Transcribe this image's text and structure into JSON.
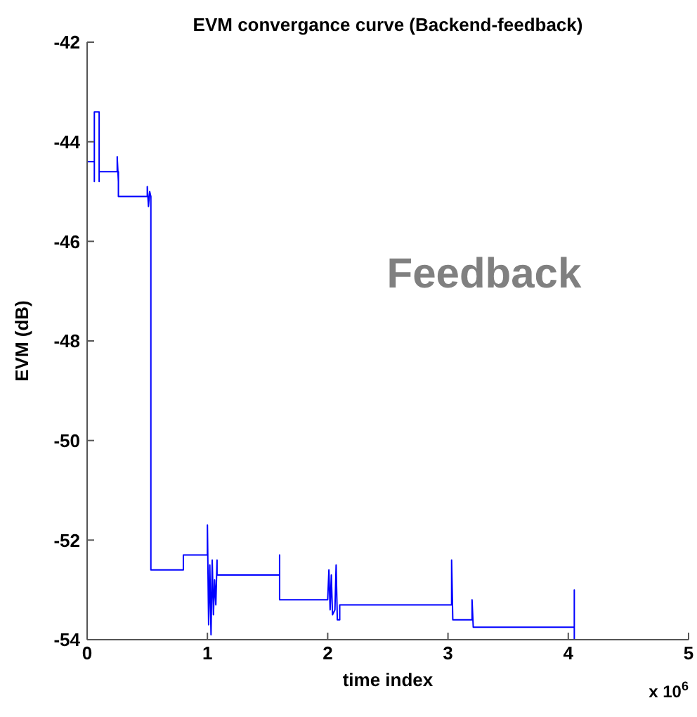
{
  "chart_data": {
    "type": "line",
    "title": "EVM convergance curve (Backend-feedback)",
    "xlabel": "time index",
    "ylabel": "EVM (dB)",
    "annotations": [
      "Feedback",
      "x 10$^{6}$"
    ],
    "xlim": [
      0,
      5
    ],
    "xticks": [
      0,
      1,
      2,
      3,
      4,
      5
    ],
    "ylim": [
      -54,
      -42
    ],
    "yticks": [
      -54,
      -52,
      -50,
      -48,
      -46,
      -44,
      -42
    ],
    "grid": false,
    "legend": false,
    "marker": "none",
    "line_style": "solid",
    "x": [
      0,
      0.06,
      0.06,
      0.06,
      0.1,
      0.1,
      0.1,
      0.25,
      0.25,
      0.26,
      0.26,
      0.26,
      0.5,
      0.5,
      0.51,
      0.52,
      0.53,
      0.53,
      0.8,
      0.8,
      1.0,
      1.0,
      1.01,
      1.02,
      1.03,
      1.04,
      1.05,
      1.06,
      1.07,
      1.08,
      1.08,
      1.6,
      1.6,
      1.6,
      2.0,
      2.01,
      2.02,
      2.03,
      2.04,
      2.06,
      2.07,
      2.08,
      2.1,
      2.1,
      3.03,
      3.03,
      3.04,
      3.2,
      3.2,
      3.21,
      4.05,
      4.05,
      4.05
    ],
    "series": [
      {
        "color": "#0000ff",
        "values": [
          -44.4,
          -44.4,
          -44.8,
          -43.4,
          -43.4,
          -44.8,
          -44.6,
          -44.6,
          -44.3,
          -44.8,
          -44.6,
          -45.1,
          -45.1,
          -44.9,
          -45.3,
          -45.0,
          -45.1,
          -52.6,
          -52.6,
          -52.3,
          -52.3,
          -51.7,
          -53.7,
          -52.5,
          -53.9,
          -52.4,
          -53.5,
          -52.8,
          -53.3,
          -52.4,
          -52.7,
          -52.7,
          -52.3,
          -53.2,
          -53.2,
          -52.6,
          -53.4,
          -52.7,
          -53.5,
          -53.4,
          -52.5,
          -53.6,
          -53.6,
          -53.3,
          -53.3,
          -52.4,
          -53.6,
          -53.6,
          -53.2,
          -53.75,
          -53.75,
          -53.0,
          -54.0
        ]
      }
    ]
  }
}
